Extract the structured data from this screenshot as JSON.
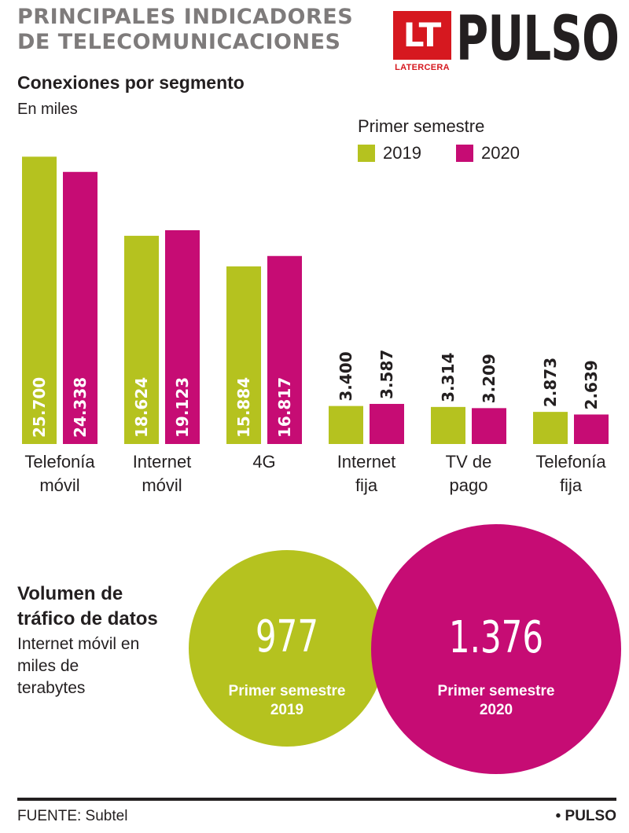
{
  "header": {
    "title": "PRINCIPALES INDICADORES DE TELECOMUNICACIONES",
    "logo_badge": "LT",
    "logo_sub": "LATERCERA",
    "logo_name": "PULSO"
  },
  "colors": {
    "series_2019": "#b5c21f",
    "series_2020": "#c60c74"
  },
  "chart_data": {
    "type": "bar",
    "title": "Conexiones por segmento",
    "subtitle": "En miles",
    "legend_title": "Primer semestre",
    "legend_position": "top-right",
    "grid": false,
    "categories": [
      [
        "Telefonía",
        "móvil"
      ],
      [
        "Internet",
        "móvil"
      ],
      [
        "4G"
      ],
      [
        "Internet",
        "fija"
      ],
      [
        "TV de",
        "pago"
      ],
      [
        "Telefonía",
        "fija"
      ]
    ],
    "series": [
      {
        "name": "2019",
        "color": "#b5c21f",
        "values": [
          25700,
          18624,
          15884,
          3400,
          3314,
          2873
        ],
        "labels": [
          "25.700",
          "18.624",
          "15.884",
          "3.400",
          "3.314",
          "2.873"
        ]
      },
      {
        "name": "2020",
        "color": "#c60c74",
        "values": [
          24338,
          19123,
          16817,
          3587,
          3209,
          2639
        ],
        "labels": [
          "24.338",
          "19.123",
          "16.817",
          "3.587",
          "3.209",
          "2.639"
        ]
      }
    ],
    "ylim": [
      0,
      26500
    ]
  },
  "traffic": {
    "title": "Volumen de tráfico de datos",
    "subtitle": "Internet móvil en miles de terabytes",
    "bubbles": [
      {
        "value": "977",
        "caption": "Primer semestre",
        "year": "2019"
      },
      {
        "value": "1.376",
        "caption": "Primer semestre",
        "year": "2020"
      }
    ]
  },
  "footer": {
    "source": "FUENTE:  Subtel",
    "brand": "• PULSO"
  }
}
